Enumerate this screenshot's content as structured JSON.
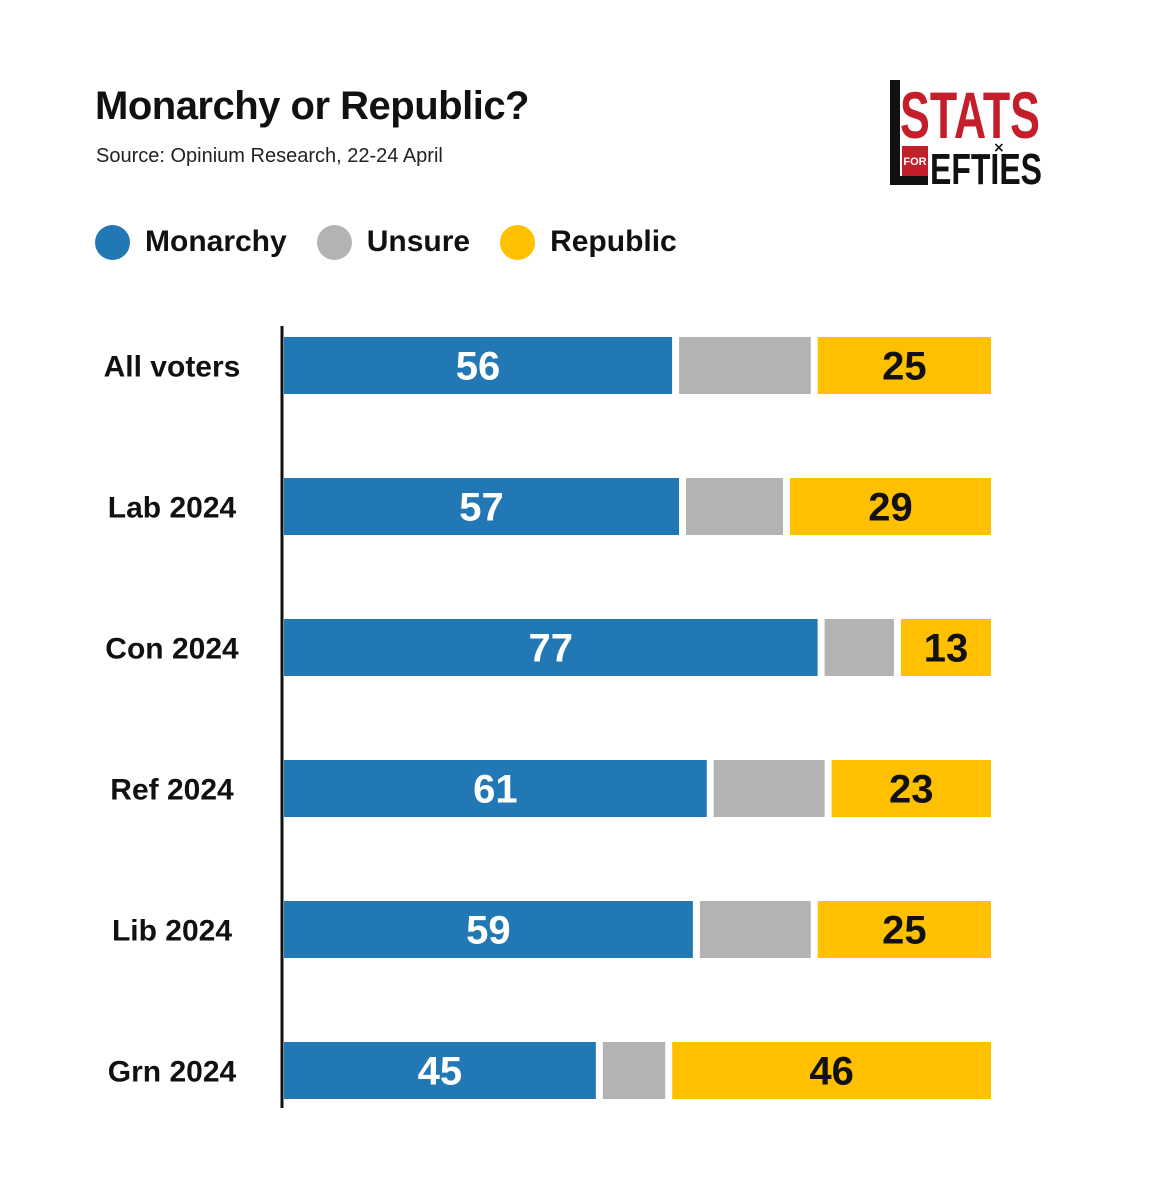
{
  "title": "Monarchy or Republic?",
  "subtitle": "Source: Opinium Research, 22-24 April",
  "logo": {
    "text_top": "STATS",
    "text_for": "FOR",
    "text_bottom": "EFTIES",
    "letter_l": "L",
    "mark": "×"
  },
  "colors": {
    "monarchy": "#2278B5",
    "unsure": "#B3B3B3",
    "republic": "#FFC000",
    "axis": "#111111",
    "logo_red": "#C41E2A",
    "logo_black": "#111111"
  },
  "legend": [
    {
      "name": "Monarchy",
      "color": "#2278B5"
    },
    {
      "name": "Unsure",
      "color": "#B3B3B3"
    },
    {
      "name": "Republic",
      "color": "#FFC000"
    }
  ],
  "chart_data": {
    "type": "bar",
    "orientation": "horizontal",
    "stacked": true,
    "title": "Monarchy or Republic?",
    "subtitle": "Source: Opinium Research, 22-24 April",
    "categories": [
      "All voters",
      "Lab 2024",
      "Con 2024",
      "Ref 2024",
      "Lib 2024",
      "Grn 2024"
    ],
    "series": [
      {
        "name": "Monarchy",
        "values": [
          56,
          57,
          77,
          61,
          59,
          45
        ],
        "labeled": true
      },
      {
        "name": "Unsure",
        "values": [
          19,
          14,
          10,
          16,
          16,
          9
        ],
        "labeled": false
      },
      {
        "name": "Republic",
        "values": [
          25,
          29,
          13,
          23,
          25,
          46
        ],
        "labeled": true
      }
    ],
    "xlim": [
      0,
      100
    ],
    "legend_position": "top-left",
    "grid": false
  }
}
